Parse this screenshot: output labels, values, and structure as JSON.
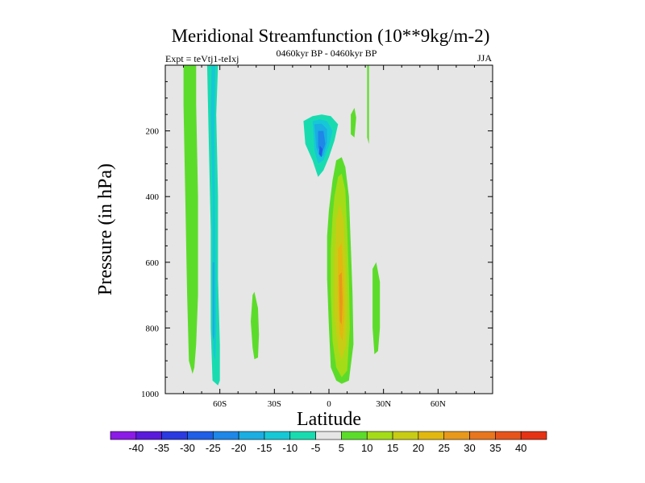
{
  "chart_data": {
    "type": "contour",
    "title": "Meridional Streamfunction (10**9kg/m-2)",
    "subtitle": "0460kyr BP - 0460kyr BP",
    "left_label": "Expt = teVtj1-teIxj",
    "right_label": "JJA",
    "xlabel": "Latitude",
    "ylabel": "Pressure (in hPa)",
    "xlim": [
      -90,
      90
    ],
    "ylim": [
      1000,
      0
    ],
    "x_ticks": [
      {
        "value": -60,
        "label": "60S"
      },
      {
        "value": -30,
        "label": "30S"
      },
      {
        "value": 0,
        "label": "0"
      },
      {
        "value": 30,
        "label": "30N"
      },
      {
        "value": 60,
        "label": "60N"
      }
    ],
    "y_ticks": [
      {
        "value": 200,
        "label": "200"
      },
      {
        "value": 400,
        "label": "400"
      },
      {
        "value": 600,
        "label": "600"
      },
      {
        "value": 800,
        "label": "800"
      },
      {
        "value": 1000,
        "label": "1000"
      }
    ],
    "contour_levels": [
      -40,
      -35,
      -30,
      -25,
      -20,
      -15,
      -10,
      -5,
      5,
      10,
      15,
      20,
      25,
      30,
      35,
      40
    ],
    "colorbar_labels": [
      "-40",
      "-35",
      "-30",
      "-25",
      "-20",
      "-15",
      "-10",
      "-5",
      "5",
      "10",
      "15",
      "20",
      "25",
      "30",
      "35",
      "40"
    ],
    "colorbar_colors": [
      "#8c1ae6",
      "#5a1adc",
      "#2a3ae0",
      "#1f5ee6",
      "#1e87e8",
      "#1aaee2",
      "#16c8d6",
      "#18dcb0",
      "#e6e6e6",
      "#5cdc2a",
      "#a4dc18",
      "#c8cc14",
      "#e2b810",
      "#e8981a",
      "#e8761e",
      "#e6541c",
      "#e63214"
    ],
    "background_color": "#e6e6e6",
    "regions": [
      {
        "name": "band-far-south",
        "value_min": 5,
        "points": [
          [
            -79,
            0
          ],
          [
            -73,
            0
          ],
          [
            -73,
            120
          ],
          [
            -72,
            400
          ],
          [
            -72,
            700
          ],
          [
            -73,
            850
          ],
          [
            -74,
            920
          ],
          [
            -75,
            940
          ],
          [
            -77,
            900
          ],
          [
            -78,
            700
          ],
          [
            -79,
            400
          ],
          [
            -80,
            120
          ],
          [
            -80,
            0
          ]
        ]
      },
      {
        "name": "band-60s-outer",
        "value_min": -10,
        "points": [
          [
            -66,
            0
          ],
          [
            -61,
            0
          ],
          [
            -62,
            150
          ],
          [
            -61,
            400
          ],
          [
            -61,
            650
          ],
          [
            -60,
            850
          ],
          [
            -60,
            960
          ],
          [
            -61,
            975
          ],
          [
            -64,
            960
          ],
          [
            -65,
            800
          ],
          [
            -65,
            500
          ],
          [
            -66,
            250
          ],
          [
            -67,
            0
          ]
        ]
      },
      {
        "name": "band-60s-mid",
        "value_min": -15,
        "points": [
          [
            -64.5,
            0
          ],
          [
            -62.5,
            0
          ],
          [
            -63,
            200
          ],
          [
            -62.5,
            500
          ],
          [
            -62,
            800
          ],
          [
            -62.5,
            900
          ],
          [
            -63.5,
            880
          ],
          [
            -64,
            700
          ],
          [
            -64,
            400
          ],
          [
            -65,
            150
          ]
        ]
      },
      {
        "name": "band-60s-inner",
        "value_min": -20,
        "points": [
          [
            -64,
            600
          ],
          [
            -63,
            600
          ],
          [
            -63,
            820
          ],
          [
            -63.5,
            840
          ],
          [
            -64,
            820
          ]
        ]
      },
      {
        "name": "blob-40s",
        "value_min": 5,
        "points": [
          [
            -42,
            700
          ],
          [
            -41,
            690
          ],
          [
            -39,
            740
          ],
          [
            -38.5,
            820
          ],
          [
            -39,
            890
          ],
          [
            -41,
            895
          ],
          [
            -42,
            860
          ],
          [
            -43,
            780
          ]
        ]
      },
      {
        "name": "ascend-ring1",
        "value_min": -5,
        "points": [
          [
            -16,
            160
          ],
          [
            -10,
            140
          ],
          [
            -4,
            130
          ],
          [
            2,
            135
          ],
          [
            6,
            150
          ],
          [
            8,
            180
          ],
          [
            5,
            220
          ],
          [
            3,
            280
          ],
          [
            -1,
            340
          ],
          [
            -4,
            400
          ],
          [
            -6,
            430
          ],
          [
            -7,
            360
          ],
          [
            -10,
            310
          ],
          [
            -14,
            260
          ],
          [
            -17,
            220
          ]
        ]
      },
      {
        "name": "ascend-ring2",
        "value_min": -10,
        "points": [
          [
            -14,
            170
          ],
          [
            -9,
            155
          ],
          [
            -4,
            150
          ],
          [
            1,
            155
          ],
          [
            5,
            180
          ],
          [
            3,
            230
          ],
          [
            0,
            280
          ],
          [
            -3,
            320
          ],
          [
            -6,
            340
          ],
          [
            -9,
            290
          ],
          [
            -13,
            240
          ]
        ]
      },
      {
        "name": "ascend-ring3",
        "value_min": -15,
        "points": [
          [
            -9,
            170
          ],
          [
            -5,
            165
          ],
          [
            -1,
            170
          ],
          [
            2,
            200
          ],
          [
            0,
            245
          ],
          [
            -3,
            290
          ],
          [
            -6,
            300
          ],
          [
            -8,
            260
          ]
        ]
      },
      {
        "name": "ascend-ring4",
        "value_min": -20,
        "points": [
          [
            -8,
            180
          ],
          [
            -4,
            178
          ],
          [
            -1,
            195
          ],
          [
            -1,
            235
          ],
          [
            -3,
            275
          ],
          [
            -5,
            280
          ],
          [
            -7,
            250
          ]
        ]
      },
      {
        "name": "ascend-ring5",
        "value_min": -25,
        "points": [
          [
            -6,
            200
          ],
          [
            -3,
            200
          ],
          [
            -2,
            240
          ],
          [
            -4,
            270
          ],
          [
            -6,
            250
          ]
        ]
      },
      {
        "name": "ascend-core",
        "value_min": -30,
        "points": [
          [
            -5,
            245
          ],
          [
            -3.5,
            255
          ],
          [
            -4,
            280
          ],
          [
            -5.5,
            270
          ]
        ]
      },
      {
        "name": "col-equator-neg",
        "value_min": -5,
        "points": [
          [
            -7,
            480
          ],
          [
            -5,
            500
          ],
          [
            -4,
            600
          ],
          [
            -3,
            720
          ],
          [
            -3.5,
            820
          ],
          [
            -2,
            960
          ],
          [
            -4,
            975
          ],
          [
            -6,
            900
          ],
          [
            -7,
            750
          ],
          [
            -7,
            600
          ]
        ]
      },
      {
        "name": "positive-cell",
        "value_min": 5,
        "points": [
          [
            2,
            350
          ],
          [
            4,
            290
          ],
          [
            7,
            280
          ],
          [
            9,
            310
          ],
          [
            11,
            400
          ],
          [
            12,
            550
          ],
          [
            13,
            700
          ],
          [
            13.5,
            850
          ],
          [
            11,
            960
          ],
          [
            7,
            970
          ],
          [
            4,
            960
          ],
          [
            1,
            920
          ],
          [
            0,
            800
          ],
          [
            -1,
            650
          ],
          [
            -1,
            520
          ],
          [
            0,
            440
          ]
        ]
      },
      {
        "name": "positive-cell-10",
        "value_min": 10,
        "points": [
          [
            3,
            400
          ],
          [
            5,
            340
          ],
          [
            7,
            330
          ],
          [
            9,
            380
          ],
          [
            10,
            500
          ],
          [
            11,
            650
          ],
          [
            11.5,
            800
          ],
          [
            10,
            930
          ],
          [
            7,
            950
          ],
          [
            4,
            920
          ],
          [
            2,
            840
          ],
          [
            1,
            700
          ],
          [
            1,
            560
          ],
          [
            2,
            460
          ]
        ]
      },
      {
        "name": "positive-cell-15",
        "value_min": 15,
        "points": [
          [
            4,
            470
          ],
          [
            6,
            420
          ],
          [
            8,
            470
          ],
          [
            9,
            580
          ],
          [
            10,
            720
          ],
          [
            9.5,
            850
          ],
          [
            7,
            900
          ],
          [
            5,
            860
          ],
          [
            3,
            760
          ],
          [
            3,
            600
          ]
        ]
      },
      {
        "name": "positive-cell-20",
        "value_min": 20,
        "points": [
          [
            5,
            560
          ],
          [
            7,
            540
          ],
          [
            8,
            640
          ],
          [
            8.5,
            760
          ],
          [
            7.5,
            840
          ],
          [
            6,
            820
          ],
          [
            5,
            720
          ]
        ]
      },
      {
        "name": "positive-cell-25",
        "value_min": 25,
        "points": [
          [
            5.5,
            640
          ],
          [
            7,
            630
          ],
          [
            7.5,
            720
          ],
          [
            7,
            790
          ],
          [
            6,
            780
          ]
        ]
      },
      {
        "name": "strip-north-top",
        "value_min": 5,
        "points": [
          [
            21,
            0
          ],
          [
            22,
            0
          ],
          [
            22,
            120
          ],
          [
            22,
            240
          ],
          [
            21,
            220
          ],
          [
            21,
            120
          ]
        ]
      },
      {
        "name": "strip-north-neg",
        "value_min": -5,
        "points": [
          [
            17,
            570
          ],
          [
            19,
            540
          ],
          [
            21,
            620
          ],
          [
            22,
            750
          ],
          [
            21,
            880
          ],
          [
            19,
            900
          ],
          [
            17,
            820
          ],
          [
            16,
            700
          ]
        ]
      },
      {
        "name": "strip-north-pos",
        "value_min": 5,
        "points": [
          [
            24,
            620
          ],
          [
            26,
            600
          ],
          [
            28,
            660
          ],
          [
            28,
            800
          ],
          [
            27,
            870
          ],
          [
            25,
            880
          ],
          [
            24,
            800
          ]
        ]
      },
      {
        "name": "strip-equator-top",
        "value_min": 5,
        "points": [
          [
            12,
            150
          ],
          [
            14,
            130
          ],
          [
            15,
            160
          ],
          [
            14,
            220
          ],
          [
            12,
            210
          ]
        ]
      }
    ]
  }
}
